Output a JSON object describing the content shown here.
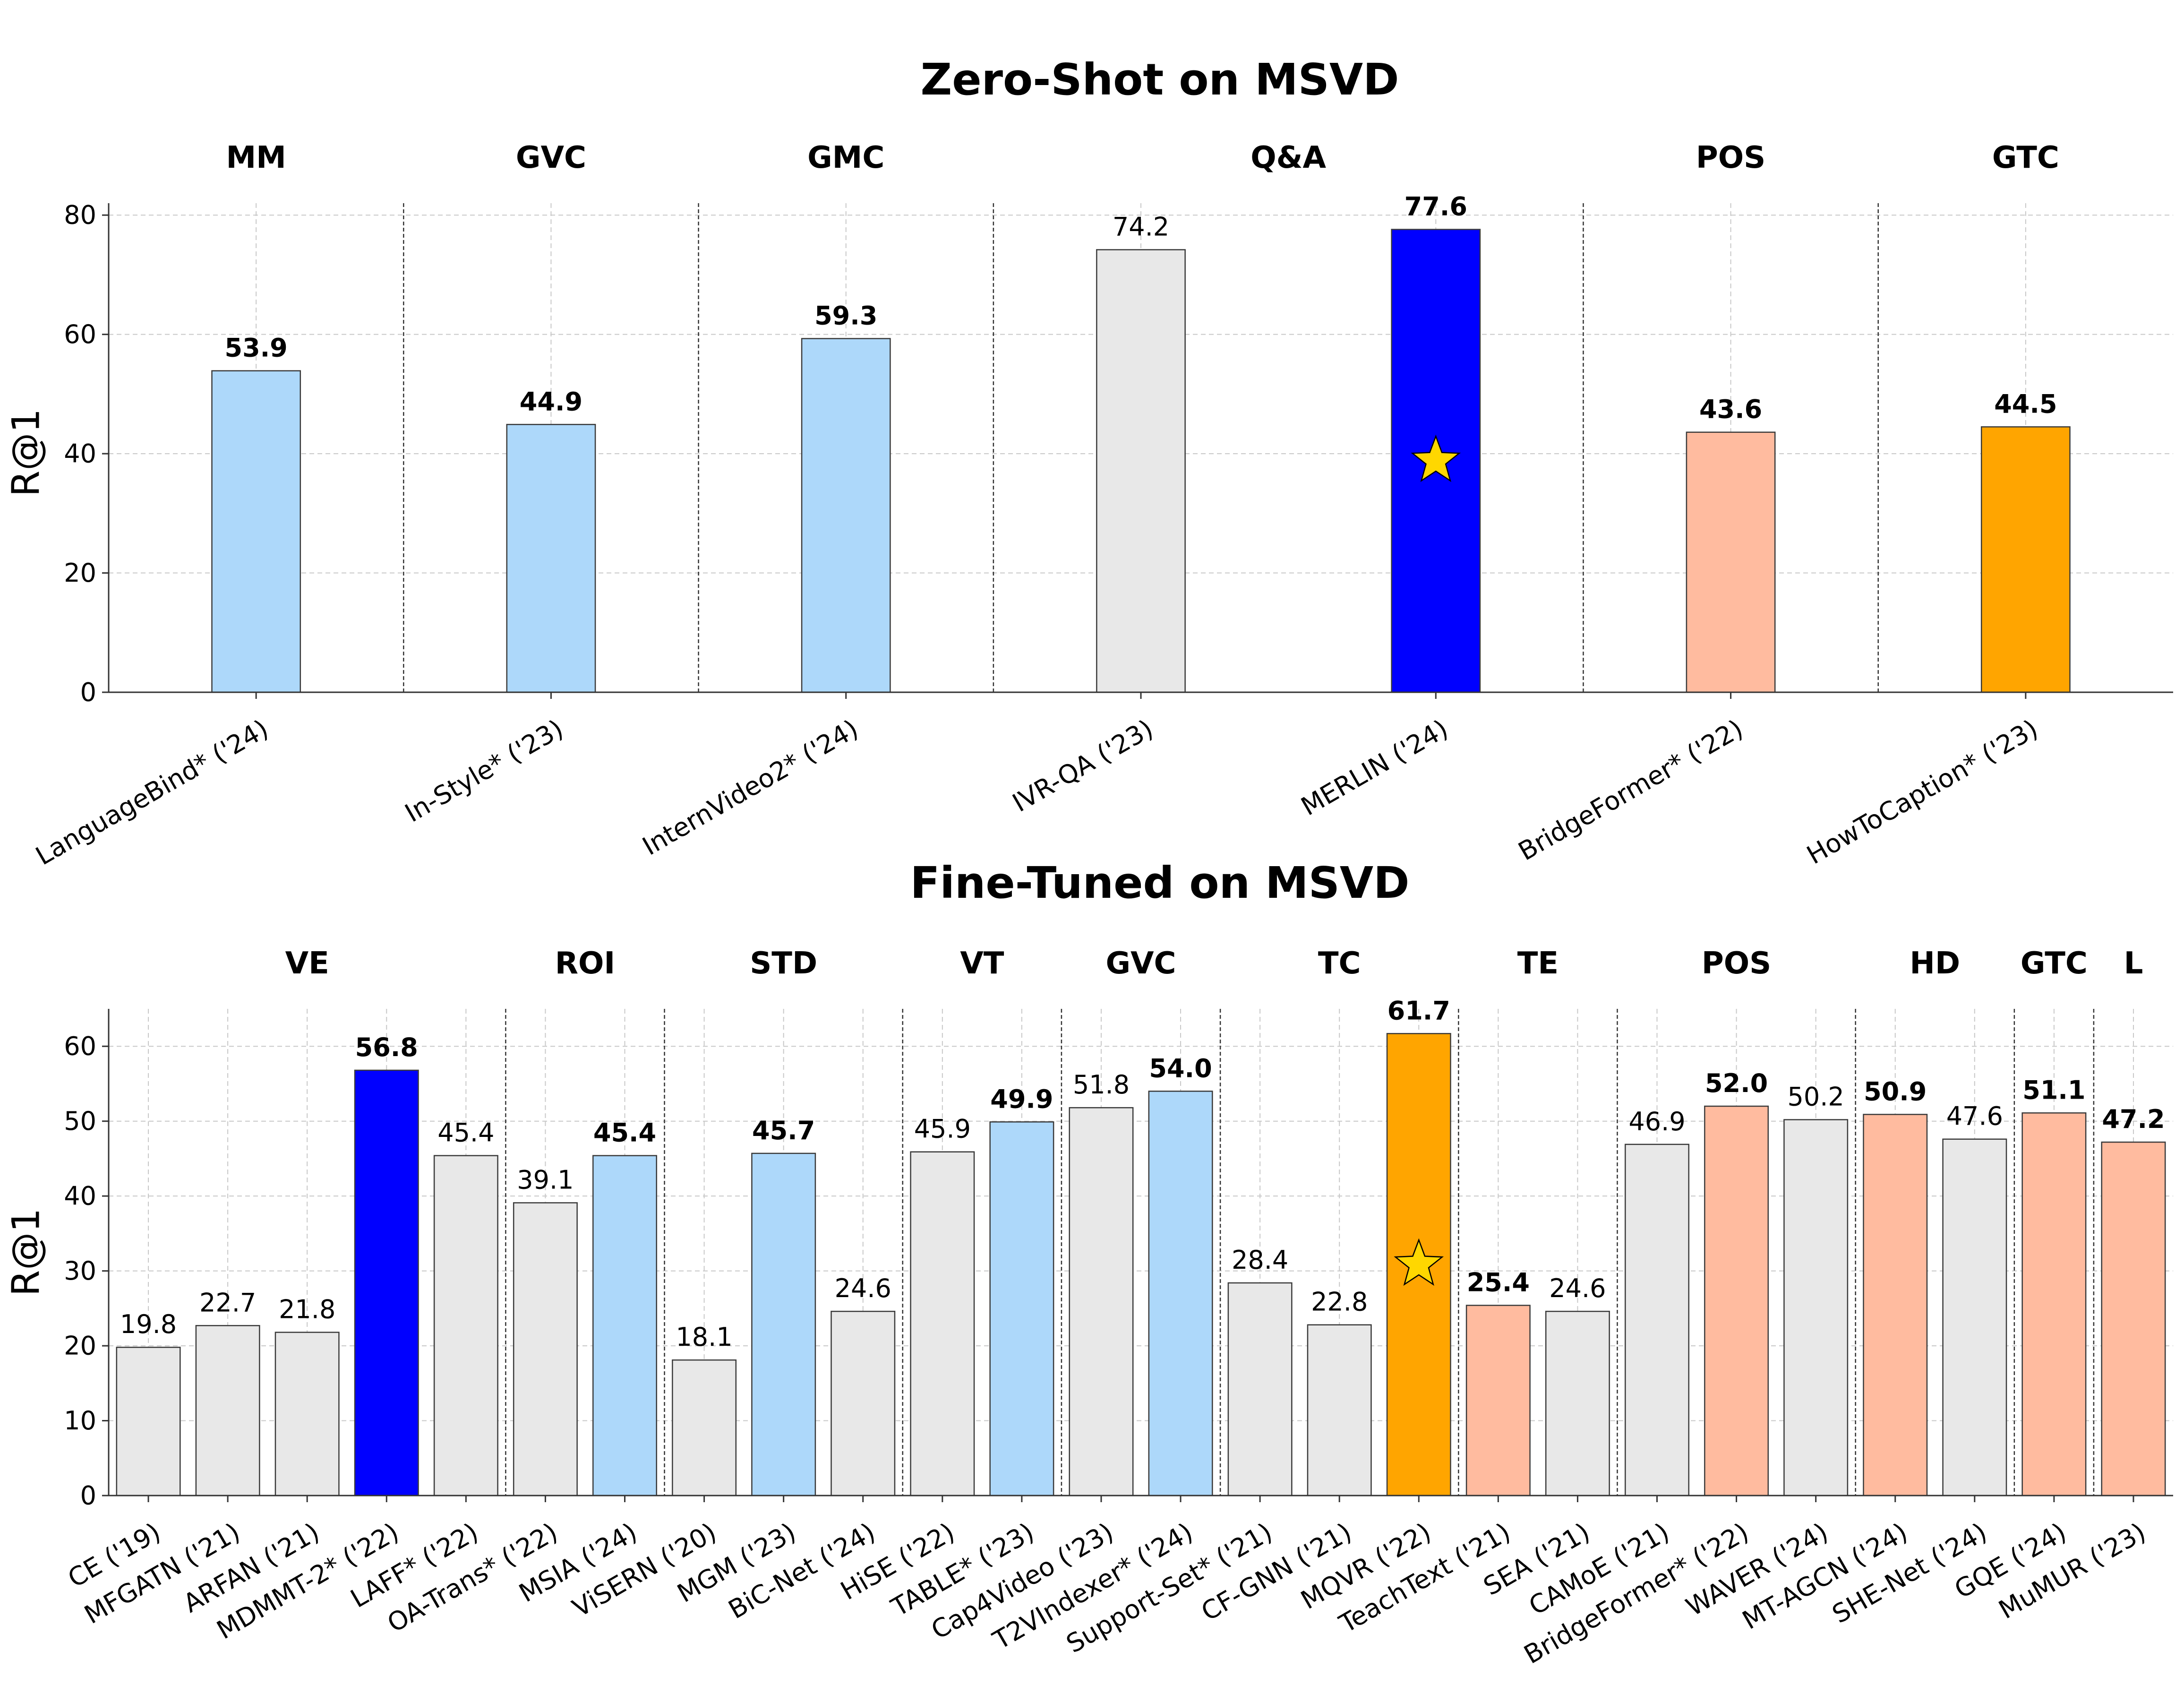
{
  "chart_data": [
    {
      "type": "bar",
      "title": "Zero-Shot on MSVD",
      "xlabel": "",
      "ylabel": "R@1",
      "ylim": [
        0,
        82
      ],
      "yticks": [
        "0",
        "20",
        "40",
        "60",
        "80"
      ],
      "grid": true,
      "groups": [
        {
          "label": "MM",
          "count": 1
        },
        {
          "label": "GVC",
          "count": 1
        },
        {
          "label": "GMC",
          "count": 1
        },
        {
          "label": "Q&A",
          "count": 2
        },
        {
          "label": "POS",
          "count": 1
        },
        {
          "label": "GTC",
          "count": 1
        }
      ],
      "categories": [
        "LanguageBind* ('24)",
        "In-Style* ('23)",
        "InternVideo2* ('24)",
        "IVR-QA ('23)",
        "MERLIN ('24)",
        "BridgeFormer* ('22)",
        "HowToCaption* ('23)"
      ],
      "values": [
        53.9,
        44.9,
        59.3,
        74.2,
        77.6,
        43.6,
        44.5
      ],
      "value_labels": [
        "53.9",
        "44.9",
        "59.3",
        "74.2",
        "77.6",
        "43.6",
        "44.5"
      ],
      "bold": [
        true,
        true,
        true,
        false,
        true,
        true,
        true
      ],
      "colors": [
        "#add8fa",
        "#add8fa",
        "#add8fa",
        "#e8e8e8",
        "#0000ff",
        "#ffbb9f",
        "#ffa500"
      ],
      "star_index": 4
    },
    {
      "type": "bar",
      "title": "Fine-Tuned on MSVD",
      "xlabel": "",
      "ylabel": "R@1",
      "ylim": [
        0,
        65
      ],
      "yticks": [
        "0",
        "10",
        "20",
        "30",
        "40",
        "50",
        "60"
      ],
      "grid": true,
      "groups": [
        {
          "label": "VE",
          "count": 5
        },
        {
          "label": "ROI",
          "count": 2
        },
        {
          "label": "STD",
          "count": 3
        },
        {
          "label": "VT",
          "count": 2
        },
        {
          "label": "GVC",
          "count": 2
        },
        {
          "label": "TC",
          "count": 3
        },
        {
          "label": "TE",
          "count": 2
        },
        {
          "label": "POS",
          "count": 3
        },
        {
          "label": "HD",
          "count": 2
        },
        {
          "label": "GTC",
          "count": 1
        },
        {
          "label": "L",
          "count": 1
        }
      ],
      "categories": [
        "CE ('19)",
        "MFGATN ('21)",
        "ARFAN ('21)",
        "MDMMT-2* ('22)",
        "LAFF* ('22)",
        "OA-Trans* ('22)",
        "MSIA ('24)",
        "ViSERN ('20)",
        "MGM ('23)",
        "BiC-Net ('24)",
        "HiSE ('22)",
        "TABLE* ('23)",
        "Cap4Video ('23)",
        "T2VIndexer* ('24)",
        "Support-Set* ('21)",
        "CF-GNN ('21)",
        "MQVR ('22)",
        "TeachText ('21)",
        "SEA ('21)",
        "CAMoE ('21)",
        "BridgeFormer* ('22)",
        "WAVER ('24)",
        "MT-AGCN ('24)",
        "SHE-Net ('24)",
        "GQE ('24)",
        "MuMUR ('23)"
      ],
      "values": [
        19.8,
        22.7,
        21.8,
        56.8,
        45.4,
        39.1,
        45.4,
        18.1,
        45.7,
        24.6,
        45.9,
        49.9,
        51.8,
        54.0,
        28.4,
        22.8,
        61.7,
        25.4,
        24.6,
        46.9,
        52.0,
        50.2,
        50.9,
        47.6,
        51.1,
        47.2
      ],
      "value_labels": [
        "19.8",
        "22.7",
        "21.8",
        "56.8",
        "45.4",
        "39.1",
        "45.4",
        "18.1",
        "45.7",
        "24.6",
        "45.9",
        "49.9",
        "51.8",
        "54.0",
        "28.4",
        "22.8",
        "61.7",
        "25.4",
        "24.6",
        "46.9",
        "52.0",
        "50.2",
        "50.9",
        "47.6",
        "51.1",
        "47.2"
      ],
      "bold": [
        false,
        false,
        false,
        true,
        false,
        false,
        true,
        false,
        true,
        false,
        false,
        true,
        false,
        true,
        false,
        false,
        true,
        true,
        false,
        false,
        true,
        false,
        true,
        false,
        true,
        true
      ],
      "colors": [
        "#e8e8e8",
        "#e8e8e8",
        "#e8e8e8",
        "#0000ff",
        "#e8e8e8",
        "#e8e8e8",
        "#add8fa",
        "#e8e8e8",
        "#add8fa",
        "#e8e8e8",
        "#e8e8e8",
        "#add8fa",
        "#e8e8e8",
        "#add8fa",
        "#e8e8e8",
        "#e8e8e8",
        "#ffa500",
        "#ffbb9f",
        "#e8e8e8",
        "#e8e8e8",
        "#ffbb9f",
        "#e8e8e8",
        "#ffbb9f",
        "#e8e8e8",
        "#ffbb9f",
        "#ffbb9f"
      ],
      "star_index": 16
    }
  ]
}
